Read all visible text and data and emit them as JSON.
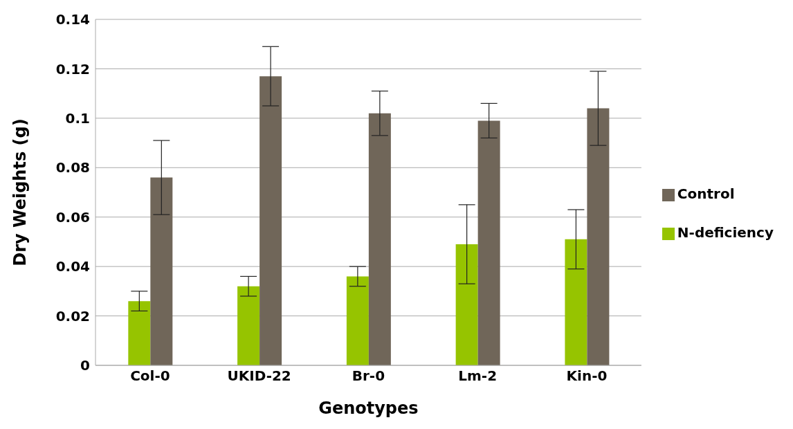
{
  "chart_data": {
    "type": "bar",
    "xlabel": "Genotypes",
    "ylabel": "Dry Weights (g)",
    "categories": [
      "Col-0",
      "UKID-22",
      "Br-0",
      "Lm-2",
      "Kin-0"
    ],
    "series": [
      {
        "name": "N-deficiency",
        "color": "#96c400",
        "values": [
          0.026,
          0.032,
          0.036,
          0.049,
          0.051
        ],
        "errors": [
          0.004,
          0.004,
          0.004,
          0.016,
          0.012
        ]
      },
      {
        "name": "Control",
        "color": "#706659",
        "values": [
          0.076,
          0.117,
          0.102,
          0.099,
          0.104
        ],
        "errors": [
          0.015,
          0.012,
          0.009,
          0.007,
          0.015
        ]
      }
    ],
    "ylim": [
      0,
      0.14
    ],
    "yticks": [
      0,
      0.02,
      0.04,
      0.06,
      0.08,
      0.1,
      0.12,
      0.14
    ],
    "grid": "y",
    "legend": "right"
  }
}
